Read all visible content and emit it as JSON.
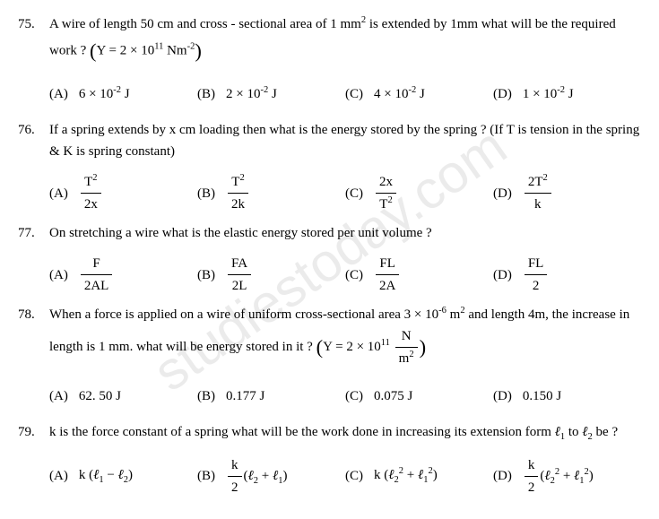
{
  "watermark": "studiestoday.com",
  "questions": [
    {
      "num": "75.",
      "text_parts": [
        "A wire of length 50 cm and cross - sectional area of 1 mm",
        " is extended by 1mm what will be the required work ? ",
        "Y = 2 × 10",
        " Nm"
      ],
      "sup1": "2",
      "sup2": "11",
      "sup3": "-2",
      "options": [
        {
          "label": "(A)",
          "pre": "6 × 10",
          "sup": "-2",
          "post": " J"
        },
        {
          "label": "(B)",
          "pre": "2 × 10",
          "sup": "-2",
          "post": " J"
        },
        {
          "label": "(C)",
          "pre": "4 × 10",
          "sup": "-2",
          "post": " J"
        },
        {
          "label": "(D)",
          "pre": "1 × 10",
          "sup": "-2",
          "post": " J"
        }
      ]
    },
    {
      "num": "76.",
      "text": "If a spring extends by x cm loading then what is the energy stored by the spring ? (If T is tension in the spring & K is spring constant)",
      "options": [
        {
          "label": "(A)",
          "num": "T",
          "numsup": "2",
          "den": "2x"
        },
        {
          "label": "(B)",
          "num": "T",
          "numsup": "2",
          "den": "2k"
        },
        {
          "label": "(C)",
          "num": "2x",
          "den": "T",
          "densup": "2"
        },
        {
          "label": "(D)",
          "num": "2T",
          "numsup": "2",
          "den": "k"
        }
      ]
    },
    {
      "num": "77.",
      "text": "On stretching a wire what is the elastic energy stored per unit volume ?",
      "options": [
        {
          "label": "(A)",
          "num": "F",
          "den": "2AL"
        },
        {
          "label": "(B)",
          "num": "FA",
          "den": "2L"
        },
        {
          "label": "(C)",
          "num": "FL",
          "den": "2A"
        },
        {
          "label": "(D)",
          "num": "FL",
          "den": "2"
        }
      ]
    },
    {
      "num": "78.",
      "text_p1": "When a force is applied on a wire of uniform cross-sectional area 3 × 10",
      "sup1": "-6",
      "text_p2": " m",
      "sup2": "2",
      "text_p3": " and length 4m, the increase in length is 1 mm. what will be energy stored in it ? ",
      "text_p4": "Y = 2 × 10",
      "sup3": "11",
      "frac_num": "N",
      "frac_den": "m",
      "frac_densup": "2",
      "options": [
        {
          "label": "(A)",
          "val": "62. 50 J"
        },
        {
          "label": "(B)",
          "val": "0.177 J"
        },
        {
          "label": "(C)",
          "val": "0.075 J"
        },
        {
          "label": "(D)",
          "val": "0.150 J"
        }
      ]
    },
    {
      "num": "79.",
      "text_p1": "k is the force constant of a spring what will be the work done in increasing its extension form ",
      "ell1": "ℓ",
      "sub1": "1",
      "text_p2": " to ",
      "ell2": "ℓ",
      "sub2": "2",
      "text_p3": " be ?",
      "options": [
        {
          "label": "(A)"
        },
        {
          "label": "(B)"
        },
        {
          "label": "(C)"
        },
        {
          "label": "(D)"
        }
      ]
    }
  ]
}
